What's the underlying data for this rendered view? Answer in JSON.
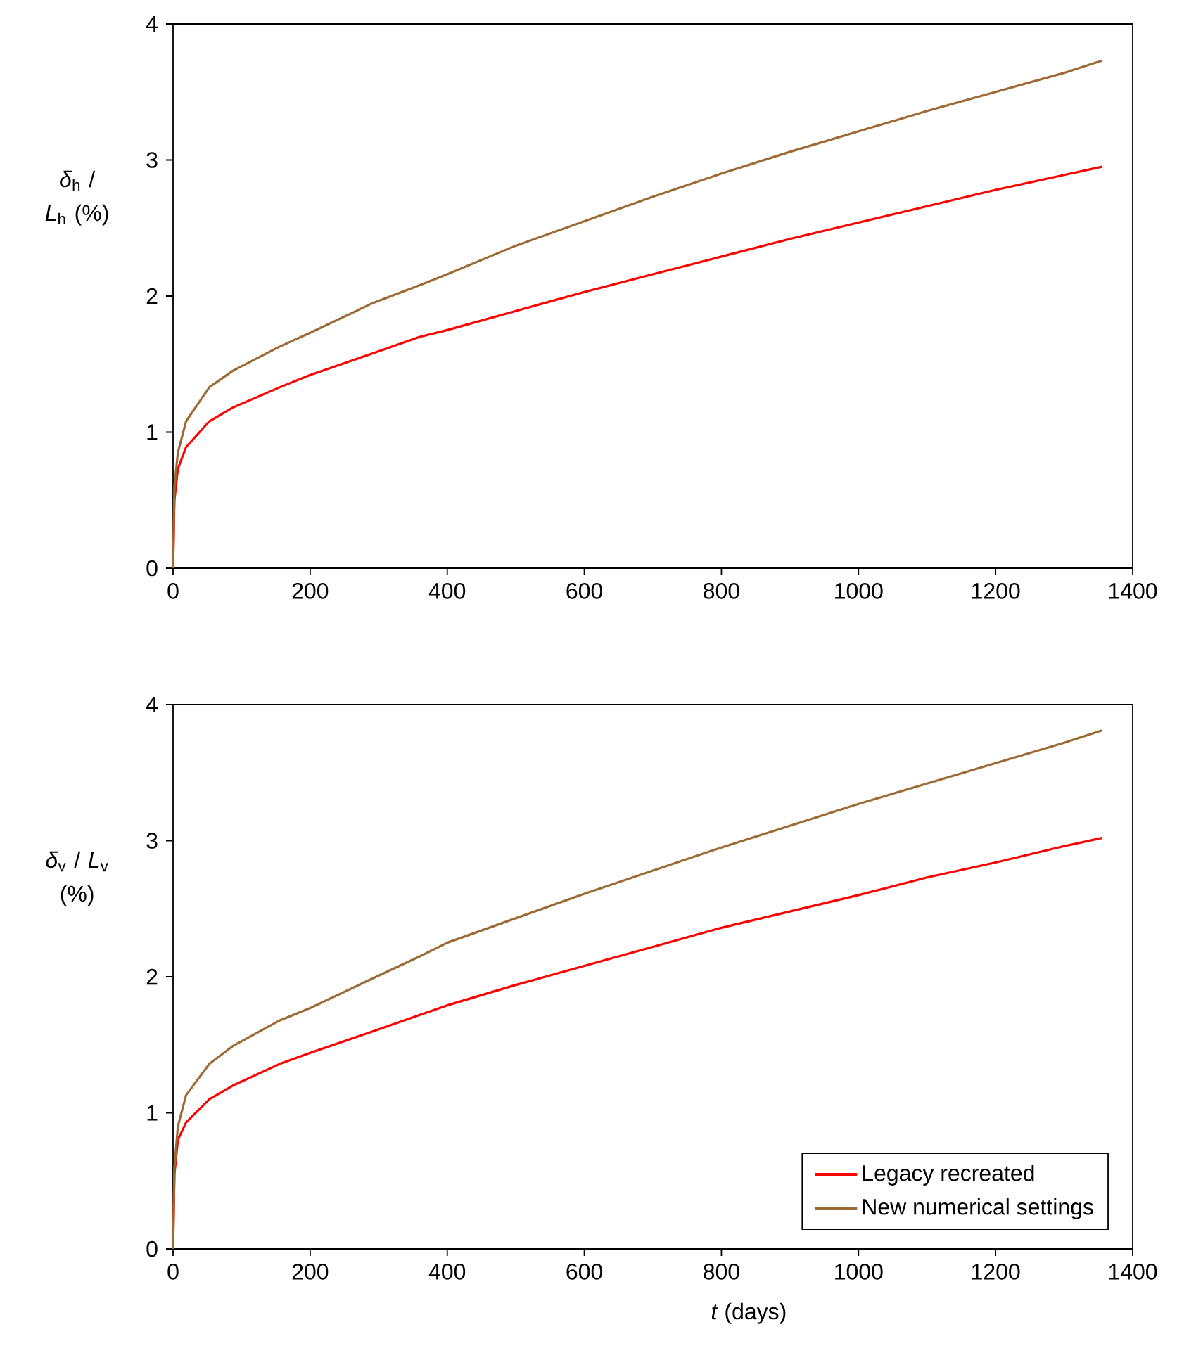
{
  "chart_data": [
    {
      "type": "line",
      "ylabel": "*δ*$_{h}$ / *L*$_{h}$ (%)",
      "x": [
        0,
        2,
        7,
        19,
        53,
        87,
        156,
        200,
        292,
        360,
        400,
        500,
        600,
        700,
        800,
        900,
        1000,
        1100,
        1200,
        1300,
        1355
      ],
      "xlim": [
        0,
        1400
      ],
      "ylim": [
        0,
        4
      ],
      "xticks": [
        0,
        200,
        400,
        600,
        800,
        1000,
        1200,
        1400
      ],
      "yticks": [
        0,
        1,
        2,
        3,
        4
      ],
      "series": [
        {
          "color": "#ff0000",
          "values": [
            0,
            0.5,
            0.73,
            0.89,
            1.08,
            1.18,
            1.33,
            1.42,
            1.58,
            1.7,
            1.75,
            1.89,
            2.03,
            2.16,
            2.29,
            2.42,
            2.54,
            2.66,
            2.78,
            2.89,
            2.95
          ]
        },
        {
          "color": "#9c6a35",
          "values": [
            0,
            0.6,
            0.85,
            1.08,
            1.33,
            1.45,
            1.63,
            1.73,
            1.95,
            2.08,
            2.16,
            2.37,
            2.55,
            2.73,
            2.9,
            3.06,
            3.21,
            3.36,
            3.5,
            3.64,
            3.73
          ]
        }
      ]
    },
    {
      "type": "line",
      "xlabel": "*t*  (days)",
      "ylabel": "*δ*$_{v}$ / *L*$_{v}$ (%)",
      "x": [
        0,
        2,
        7,
        19,
        53,
        87,
        156,
        200,
        292,
        360,
        400,
        500,
        600,
        700,
        800,
        900,
        1000,
        1100,
        1200,
        1300,
        1355
      ],
      "xlim": [
        0,
        1400
      ],
      "ylim": [
        0,
        4
      ],
      "xticks": [
        0,
        200,
        400,
        600,
        800,
        1000,
        1200,
        1400
      ],
      "yticks": [
        0,
        1,
        2,
        3,
        4
      ],
      "legend": "bottom right",
      "series": [
        {
          "name": "Legacy recreated",
          "color": "#ff0000",
          "values": [
            0,
            0.55,
            0.8,
            0.93,
            1.1,
            1.2,
            1.36,
            1.44,
            1.6,
            1.72,
            1.79,
            1.94,
            2.08,
            2.22,
            2.36,
            2.48,
            2.6,
            2.73,
            2.84,
            2.96,
            3.02
          ]
        },
        {
          "name": "New numerical settings",
          "color": "#9c6a35",
          "values": [
            0,
            0.6,
            0.9,
            1.13,
            1.36,
            1.49,
            1.68,
            1.77,
            1.99,
            2.15,
            2.25,
            2.43,
            2.61,
            2.78,
            2.95,
            3.11,
            3.27,
            3.42,
            3.57,
            3.72,
            3.81
          ]
        }
      ]
    }
  ]
}
